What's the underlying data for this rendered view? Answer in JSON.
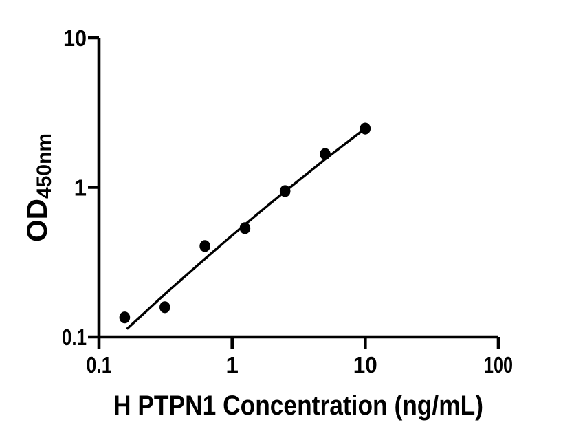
{
  "figure": {
    "background_color": "#ffffff",
    "ink_color": "#000000"
  },
  "chart_data": {
    "type": "scatter",
    "title": "",
    "xlabel": "H PTPN1 Concentration (ng/mL)",
    "ylabel": "OD450nm",
    "ylabel_main": "OD",
    "ylabel_sub": "450nm",
    "x_scale": "log",
    "y_scale": "log",
    "xlim": [
      0.1,
      100
    ],
    "ylim": [
      0.1,
      10
    ],
    "grid": false,
    "legend": null,
    "marker_color": "#000000",
    "line_color": "#000000",
    "x_ticks": [
      {
        "value": 0.1,
        "label": "0.1"
      },
      {
        "value": 1,
        "label": "1"
      },
      {
        "value": 10,
        "label": "10"
      },
      {
        "value": 100,
        "label": "100"
      }
    ],
    "y_ticks": [
      {
        "value": 0.1,
        "label": "0.1"
      },
      {
        "value": 1,
        "label": "1"
      },
      {
        "value": 10,
        "label": "10"
      }
    ],
    "points": [
      {
        "x": 0.156,
        "y": 0.135
      },
      {
        "x": 0.3125,
        "y": 0.158
      },
      {
        "x": 0.625,
        "y": 0.405
      },
      {
        "x": 1.25,
        "y": 0.533
      },
      {
        "x": 2.5,
        "y": 0.943
      },
      {
        "x": 5,
        "y": 1.67
      },
      {
        "x": 10,
        "y": 2.47
      }
    ],
    "fit_curve": [
      {
        "x": 0.162,
        "y": 0.113
      },
      {
        "x": 0.224,
        "y": 0.147
      },
      {
        "x": 0.316,
        "y": 0.195
      },
      {
        "x": 0.447,
        "y": 0.256
      },
      {
        "x": 0.631,
        "y": 0.335
      },
      {
        "x": 0.891,
        "y": 0.437
      },
      {
        "x": 1.259,
        "y": 0.567
      },
      {
        "x": 1.778,
        "y": 0.733
      },
      {
        "x": 2.512,
        "y": 0.943
      },
      {
        "x": 3.548,
        "y": 1.208
      },
      {
        "x": 5.012,
        "y": 1.545
      },
      {
        "x": 7.08,
        "y": 1.956
      },
      {
        "x": 10,
        "y": 2.472
      }
    ]
  }
}
